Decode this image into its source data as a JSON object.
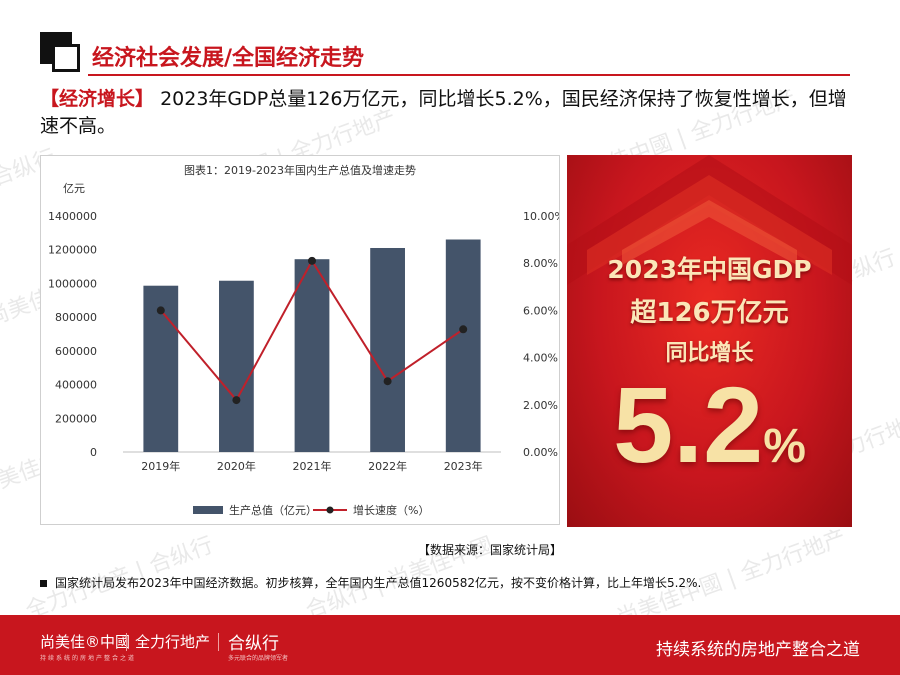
{
  "watermark": {
    "brand_a": "尚美佳中國",
    "brand_b": "全力行地产",
    "brand_c": "合纵行"
  },
  "header": {
    "section_title": "经济社会发展/全国经济走势"
  },
  "headline": {
    "tag": "【经济增长】",
    "text": "2023年GDP总量126万亿元，同比增长5.2%，国民经济保持了恢复性增长，但增速不高。"
  },
  "chart_data": {
    "type": "bar",
    "title": "图表1：2019-2023年国内生产总值及增速走势",
    "ylabel": "亿元",
    "categories": [
      "2019年",
      "2020年",
      "2021年",
      "2022年",
      "2023年"
    ],
    "ylim": [
      0,
      1400000
    ],
    "y_ticks": [
      "1400000",
      "1200000",
      "1000000",
      "800000",
      "600000",
      "400000",
      "200000",
      "0"
    ],
    "y2lim": [
      0,
      10
    ],
    "y2_ticks": [
      "10.00%",
      "8.00%",
      "6.00%",
      "4.00%",
      "2.00%",
      "0.00%"
    ],
    "series": [
      {
        "name": "生产总值（亿元）",
        "kind": "bar",
        "axis": "left",
        "values": [
          986500,
          1015986,
          1143670,
          1210207,
          1260582
        ],
        "color": "#44546a"
      },
      {
        "name": "增长速度（%）",
        "kind": "line",
        "axis": "right",
        "values": [
          6.0,
          2.2,
          8.1,
          3.0,
          5.2
        ],
        "color": "#c0202a"
      }
    ],
    "legend_position": "bottom",
    "grid": false
  },
  "promo": {
    "line1": "2023年中国GDP",
    "line2": "超126万亿元",
    "line3": "同比增长",
    "big_number": "5.2",
    "big_unit": "%"
  },
  "source": "【数据来源：国家统计局】",
  "note": "国家统计局发布2023年中国经济数据。初步核算，全年国内生产总值1260582亿元，按不变价格计算，比上年增长5.2%.",
  "footer": {
    "brand_a": "尚美佳®中國",
    "brand_a_sub": "持续系统的房地产整合之道",
    "brand_b": "全力行地产",
    "brand_c": "合纵行",
    "brand_c_sub": "多元联合的品牌领军者",
    "slogan": "持续系统的房地产整合之道"
  },
  "colors": {
    "accent": "#c8161e",
    "bar": "#44546a",
    "line": "#c0202a"
  }
}
